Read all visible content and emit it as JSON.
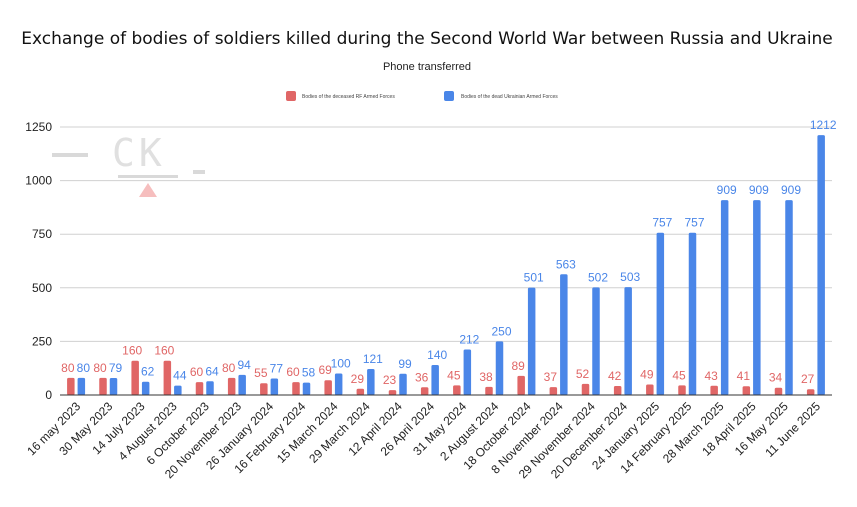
{
  "chart_data": {
    "type": "bar",
    "title": "Exchange of bodies of soldiers killed during the Second World War between Russia and Ukraine",
    "subtitle": "Phone transferred",
    "xlabel": "",
    "ylabel": "",
    "ylim": [
      0,
      1250
    ],
    "yticks": [
      0,
      250,
      500,
      750,
      1000,
      1250
    ],
    "grid": true,
    "legend_position": "top",
    "categories": [
      "16 may 2023",
      "30 May 2023",
      "14 July 2023",
      "4 August 2023",
      "6 October 2023",
      "20 November 2023",
      "26 January 2024",
      "16 February 2024",
      "15 March 2024",
      "29 March 2024",
      "12 April 2024",
      "26 April 2024",
      "31 May 2024",
      "2 August 2024",
      "18 October 2024",
      "8 November 2024",
      "29 November 2024",
      "20 December 2024",
      "24 January 2025",
      "14 February 2025",
      "28 March 2025",
      "18 April 2025",
      "16 May 2025",
      "11 June 2025"
    ],
    "series": [
      {
        "name": "Bodies of the deceased RF Armed Forces",
        "color": "#e06666",
        "values": [
          80,
          80,
          160,
          160,
          60,
          80,
          55,
          60,
          69,
          29,
          23,
          36,
          45,
          38,
          89,
          37,
          52,
          42,
          49,
          45,
          43,
          41,
          34,
          27
        ],
        "labels": [
          "80",
          "80",
          "160",
          "160",
          "60",
          "80",
          "55",
          "60",
          "69",
          "29",
          "23",
          "36",
          "45",
          "38",
          "89",
          "37",
          "52",
          "42",
          "49",
          "45",
          "43",
          "41",
          "34",
          "27"
        ]
      },
      {
        "name": "Bodies of the dead Ukrainian Armed Forces",
        "color": "#4a86e8",
        "values": [
          80,
          79,
          62,
          44,
          64,
          94,
          77,
          58,
          100,
          121,
          99,
          140,
          212,
          250,
          501,
          563,
          502,
          503,
          757,
          757,
          909,
          909,
          909,
          1212
        ],
        "labels": [
          "80",
          "79",
          "62",
          "44",
          "64",
          "94",
          "77",
          "58",
          "100",
          "121",
          "99",
          "140",
          "212",
          "250",
          "501",
          "563",
          "502",
          "503",
          "757",
          "757",
          "909",
          "909",
          "909",
          "1212"
        ]
      }
    ]
  },
  "watermark": {
    "text": "CK"
  }
}
